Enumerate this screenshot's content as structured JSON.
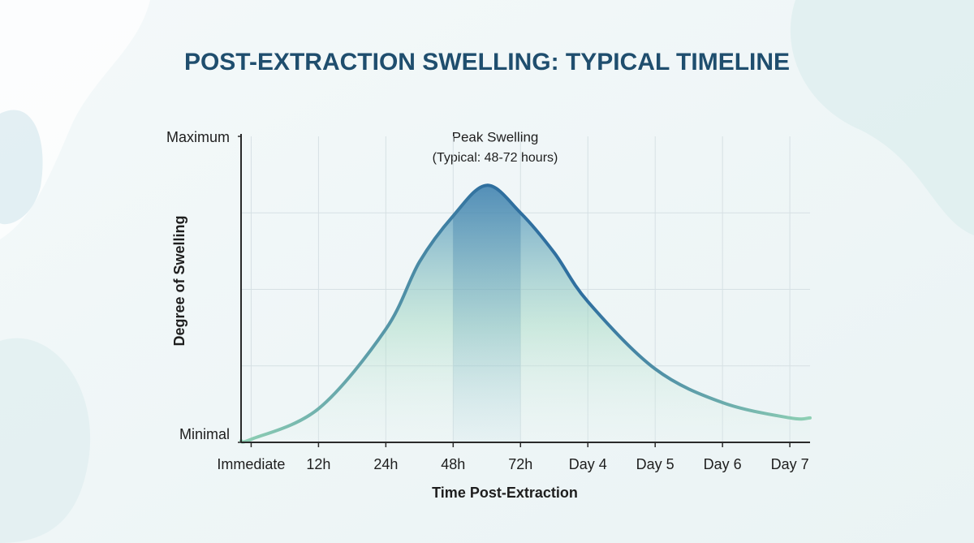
{
  "chart_data": {
    "type": "area",
    "title": "POST-EXTRACTION SWELLING: TYPICAL TIMELINE",
    "xlabel": "Time Post-Extraction",
    "ylabel": "Degree of Swelling",
    "annotation": {
      "title": "Peak Swelling",
      "subtitle": "(Typical: 48-72 hours)",
      "band": [
        3,
        4
      ]
    },
    "x": [
      -0.15,
      0,
      1,
      2,
      2.5,
      3,
      3.5,
      4,
      4.5,
      5,
      6,
      7,
      8,
      8.3
    ],
    "values": [
      0.5,
      1,
      11,
      37,
      59,
      74,
      84,
      75,
      62,
      46,
      24,
      13,
      8,
      8
    ],
    "color": "#2f6f9f",
    "side_color": "#8fd0b4",
    "xlim": [
      -0.15,
      8.3
    ],
    "xticks": [
      {
        "value": 0,
        "label": "Immediate"
      },
      {
        "value": 1,
        "label": "12h"
      },
      {
        "value": 2,
        "label": "24h"
      },
      {
        "value": 3,
        "label": "48h"
      },
      {
        "value": 4,
        "label": "72h"
      },
      {
        "value": 5,
        "label": "Day 4"
      },
      {
        "value": 6,
        "label": "Day 5"
      },
      {
        "value": 7,
        "label": "Day 6"
      },
      {
        "value": 8,
        "label": "Day 7"
      }
    ],
    "ylim": [
      0,
      100
    ],
    "yticks": [
      {
        "value": 0,
        "label": "Minimal"
      },
      {
        "value": 100,
        "label": "Maximum"
      }
    ],
    "ygrid": [
      25,
      50,
      75
    ],
    "grid": true
  }
}
